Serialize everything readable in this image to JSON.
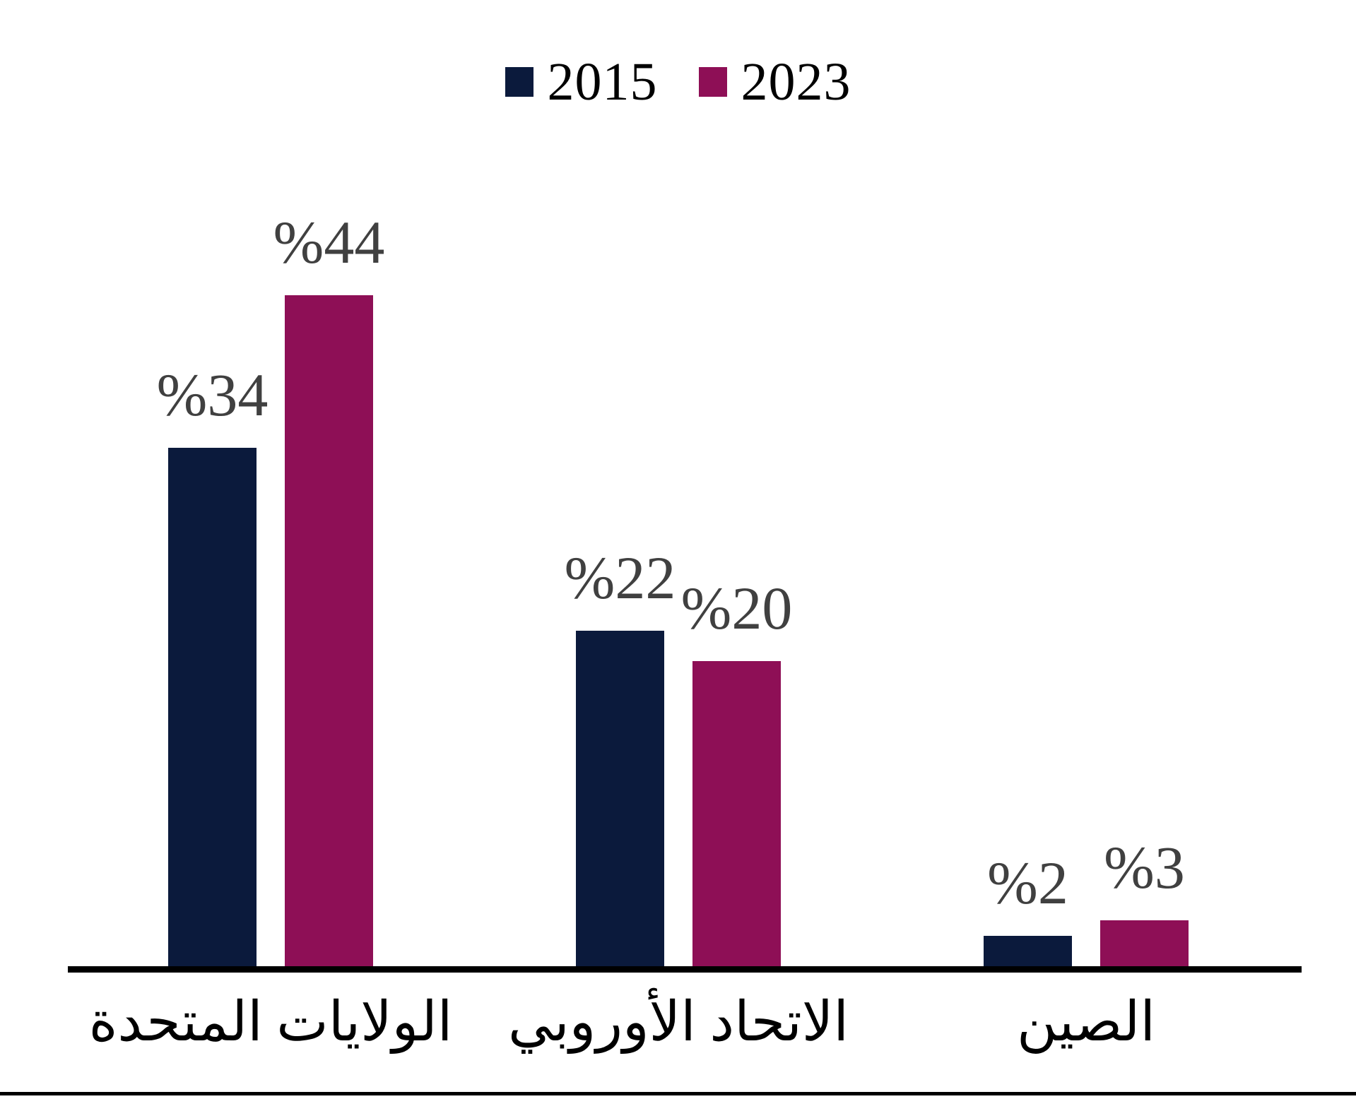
{
  "chart_data": {
    "type": "bar",
    "title": "",
    "categories": [
      "الولايات المتحدة",
      "الاتحاد الأوروبي",
      "الصين"
    ],
    "category_slugs": [
      "united-states",
      "european-union",
      "china"
    ],
    "series": [
      {
        "name": "2015",
        "color": "#0B1A3C",
        "values": [
          34,
          22,
          2
        ],
        "labels": [
          "%34",
          "%22",
          "%2"
        ]
      },
      {
        "name": "2023",
        "color": "#8E0F56",
        "values": [
          44,
          20,
          3
        ],
        "labels": [
          "%44",
          "%20",
          "%3"
        ]
      }
    ],
    "ylim": [
      0,
      44
    ],
    "grid": false,
    "legend_position": "top-center",
    "value_label_color": "#404040",
    "category_label_color": "#000000",
    "axis_line_color": "#000000",
    "background": "#FFFFFF"
  }
}
